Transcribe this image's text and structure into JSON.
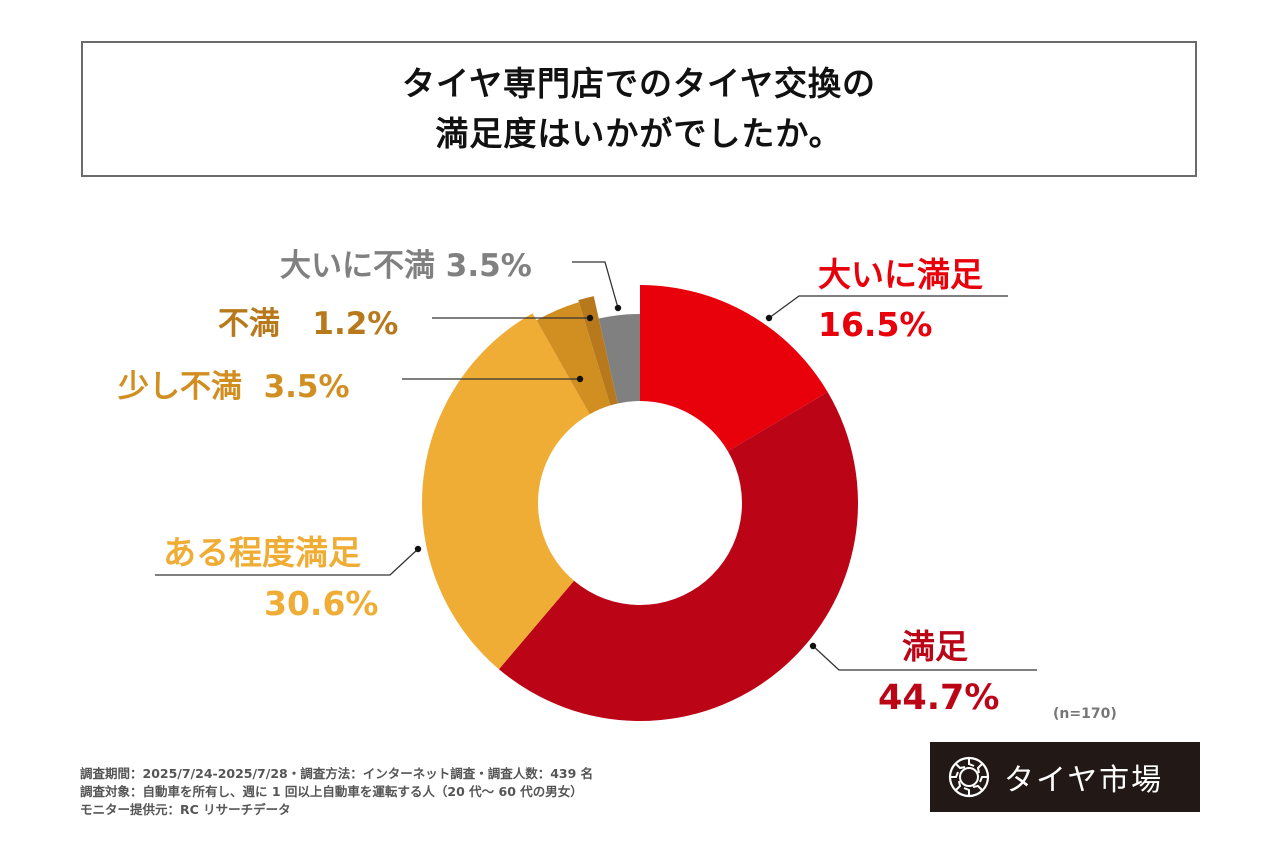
{
  "title": {
    "line1": "タイヤ専門店でのタイヤ交換の",
    "line2": "満足度はいかがでしたか。"
  },
  "chart_data": {
    "type": "pie",
    "subtype": "donut",
    "title": "タイヤ専門店でのタイヤ交換の満足度はいかがでしたか。",
    "unit": "%",
    "sample_size": "(n=170)",
    "slices": [
      {
        "label": "大いに満足",
        "value": 16.5,
        "value_label": "16.5%",
        "color": "#e8000b"
      },
      {
        "label": "満足",
        "value": 44.7,
        "value_label": "44.7%",
        "color": "#bb0517"
      },
      {
        "label": "ある程度満足",
        "value": 30.6,
        "value_label": "30.6%",
        "color": "#f0ad35"
      },
      {
        "label": "少し不満",
        "value": 3.5,
        "value_label": "3.5%",
        "color": "#d18f22"
      },
      {
        "label": "不満",
        "value": 1.2,
        "value_label": "1.2%",
        "color": "#b7791c"
      },
      {
        "label": "大いに不満",
        "value": 3.5,
        "value_label": "3.5%",
        "color": "#808080"
      }
    ]
  },
  "labels": {
    "very_satisfied": {
      "name": "大いに満足",
      "pct": "16.5%",
      "color": "#e8000b"
    },
    "satisfied": {
      "name": "満足",
      "pct": "44.7%",
      "color": "#bb0517"
    },
    "somewhat_satisfied": {
      "name": "ある程度満足",
      "pct": "30.6%",
      "color": "#f0ad35"
    },
    "slightly_dissatisfied": {
      "text": "少し不満  3.5%",
      "color": "#d18f22"
    },
    "dissatisfied": {
      "text": "不満   1.2%",
      "color": "#b7791c"
    },
    "very_dissatisfied": {
      "text": "大いに不満 3.5%",
      "color": "#808080"
    }
  },
  "sample_note": "(n=170)",
  "footnotes": [
    "調査期間：2025/7/24-2025/7/28・調査方法：インターネット調査・調査人数：439 名",
    "調査対象：自動車を所有し、週に 1 回以上自動車を運転する人（20 代～ 60 代の男女）",
    "モニター提供元：RC リサーチデータ"
  ],
  "logo": {
    "text": "タイヤ市場",
    "icon": "tire-icon"
  }
}
